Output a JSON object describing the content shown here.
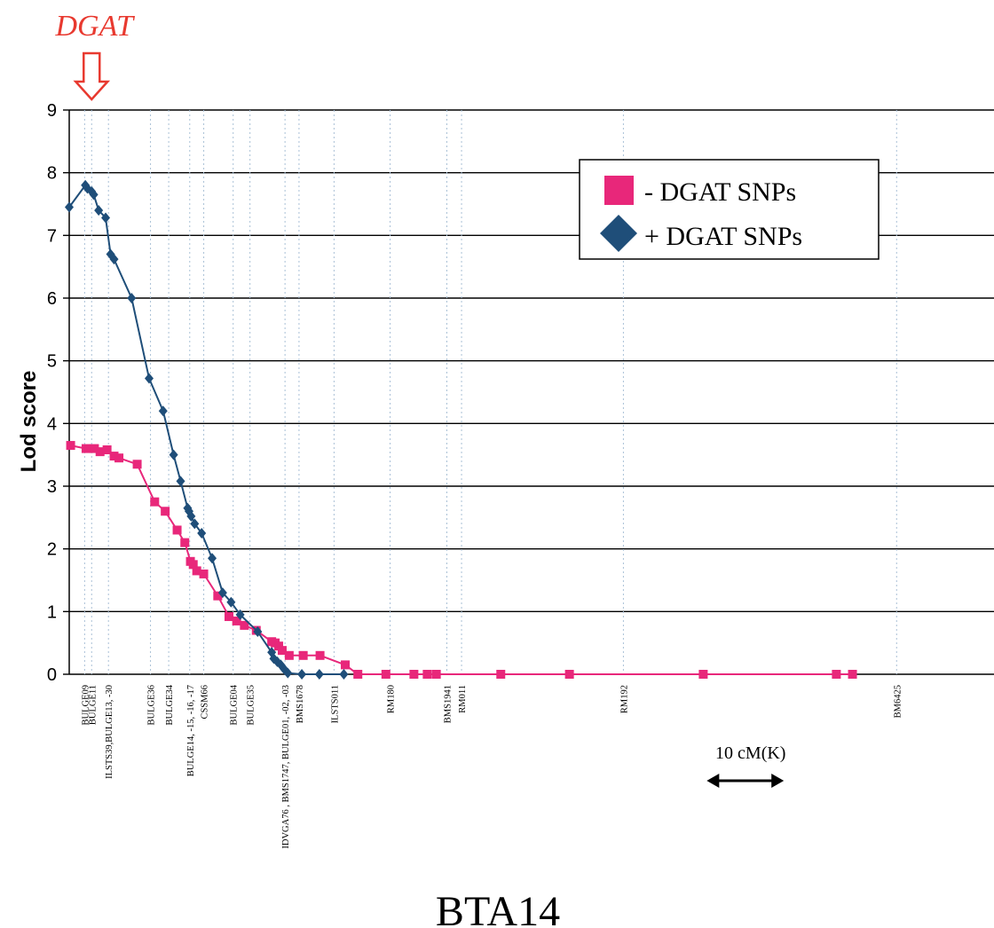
{
  "chart_data": {
    "type": "line",
    "ylabel": "Lod score",
    "xlabel": "BTA14",
    "ylim": [
      0,
      9
    ],
    "yticks": [
      "0",
      "1",
      "2",
      "3",
      "4",
      "5",
      "6",
      "7",
      "8",
      "9"
    ],
    "xlim": [
      0,
      132
    ],
    "grid": true,
    "legend_position": "top-right",
    "annotation": "DGAT",
    "annotation_x": 3.2,
    "scale_bar": {
      "label": "10 cM(K)",
      "x_start": 91,
      "x_end": 102
    },
    "markers": [
      {
        "name": "BULGE09",
        "x": 2.2
      },
      {
        "name": "BULGE11",
        "x": 3.2
      },
      {
        "name": "ILSTS39,BULGE13, -30",
        "x": 5.6
      },
      {
        "name": "BULGE36",
        "x": 11.6
      },
      {
        "name": "BULGE34",
        "x": 14.2
      },
      {
        "name": "BULGE14, -15, -16, -17",
        "x": 17.2
      },
      {
        "name": "CSSM66",
        "x": 19.2
      },
      {
        "name": "BULGE04",
        "x": 23.4
      },
      {
        "name": "BULGE35",
        "x": 25.8
      },
      {
        "name": "IDVGA76 , BMS1747, BULGE01, -02, -03",
        "x": 30.8
      },
      {
        "name": "BMS1678",
        "x": 32.8
      },
      {
        "name": "ILSTS011",
        "x": 37.8
      },
      {
        "name": "RM180",
        "x": 45.8
      },
      {
        "name": "BMS1941",
        "x": 53.9
      },
      {
        "name": "RM011",
        "x": 56.0
      },
      {
        "name": "RM192",
        "x": 79.1
      },
      {
        "name": "BM6425",
        "x": 118.1
      }
    ],
    "series": [
      {
        "name": "- DGAT SNPs",
        "color": "#e8277a",
        "marker": "square",
        "points": [
          [
            0.2,
            3.65
          ],
          [
            2.4,
            3.6
          ],
          [
            3.6,
            3.6
          ],
          [
            4.4,
            3.55
          ],
          [
            5.4,
            3.58
          ],
          [
            6.4,
            3.48
          ],
          [
            7.1,
            3.45
          ],
          [
            9.7,
            3.35
          ],
          [
            12.2,
            2.75
          ],
          [
            13.7,
            2.6
          ],
          [
            15.4,
            2.3
          ],
          [
            16.5,
            2.1
          ],
          [
            17.3,
            1.8
          ],
          [
            17.7,
            1.75
          ],
          [
            18.2,
            1.65
          ],
          [
            19.2,
            1.6
          ],
          [
            21.2,
            1.25
          ],
          [
            22.8,
            0.92
          ],
          [
            23.9,
            0.85
          ],
          [
            25.0,
            0.78
          ],
          [
            26.7,
            0.7
          ],
          [
            28.9,
            0.52
          ],
          [
            29.4,
            0.5
          ],
          [
            29.9,
            0.45
          ],
          [
            30.4,
            0.38
          ],
          [
            31.4,
            0.3
          ],
          [
            33.4,
            0.3
          ],
          [
            35.8,
            0.3
          ],
          [
            39.4,
            0.15
          ],
          [
            41.2,
            0.0
          ],
          [
            45.2,
            0.0
          ],
          [
            49.2,
            0.0
          ],
          [
            51.1,
            0.0
          ],
          [
            52.4,
            0.0
          ],
          [
            61.6,
            0.0
          ],
          [
            71.4,
            0.0
          ],
          [
            90.5,
            0.0
          ],
          [
            109.5,
            0.0
          ],
          [
            111.8,
            0.0
          ]
        ]
      },
      {
        "name": "+ DGAT SNPs",
        "color": "#1f4e79",
        "marker": "diamond",
        "points": [
          [
            0.0,
            7.45
          ],
          [
            2.3,
            7.8
          ],
          [
            2.6,
            7.75
          ],
          [
            3.2,
            7.7
          ],
          [
            3.5,
            7.65
          ],
          [
            4.2,
            7.4
          ],
          [
            5.2,
            7.28
          ],
          [
            5.9,
            6.7
          ],
          [
            6.4,
            6.62
          ],
          [
            8.9,
            6.0
          ],
          [
            11.4,
            4.72
          ],
          [
            13.4,
            4.2
          ],
          [
            14.9,
            3.5
          ],
          [
            15.9,
            3.08
          ],
          [
            16.9,
            2.65
          ],
          [
            17.1,
            2.6
          ],
          [
            17.4,
            2.52
          ],
          [
            17.9,
            2.4
          ],
          [
            18.9,
            2.25
          ],
          [
            20.4,
            1.85
          ],
          [
            21.9,
            1.3
          ],
          [
            23.1,
            1.15
          ],
          [
            24.4,
            0.95
          ],
          [
            26.9,
            0.68
          ],
          [
            28.9,
            0.35
          ],
          [
            29.2,
            0.25
          ],
          [
            29.7,
            0.2
          ],
          [
            30.2,
            0.15
          ],
          [
            30.7,
            0.08
          ],
          [
            31.2,
            0.02
          ],
          [
            33.2,
            0.0
          ],
          [
            35.7,
            0.0
          ],
          [
            39.2,
            0.0
          ]
        ]
      }
    ]
  }
}
